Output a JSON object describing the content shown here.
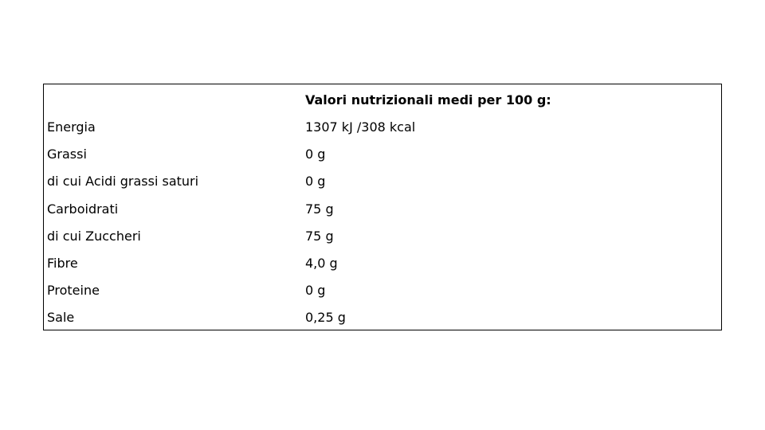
{
  "table": {
    "header": "Valori nutrizionali medi per 100 g:",
    "rows": [
      [
        "Energia",
        "1307 kJ /308 kcal"
      ],
      [
        "Grassi",
        "0 g"
      ],
      [
        "di cui Acidi grassi saturi",
        "0 g"
      ],
      [
        "Carboidrati",
        "75 g"
      ],
      [
        "di cui Zuccheri",
        "75 g"
      ],
      [
        "Fibre",
        "4,0 g"
      ],
      [
        "Proteine",
        "0 g"
      ],
      [
        "Sale",
        "0,25 g"
      ]
    ]
  }
}
